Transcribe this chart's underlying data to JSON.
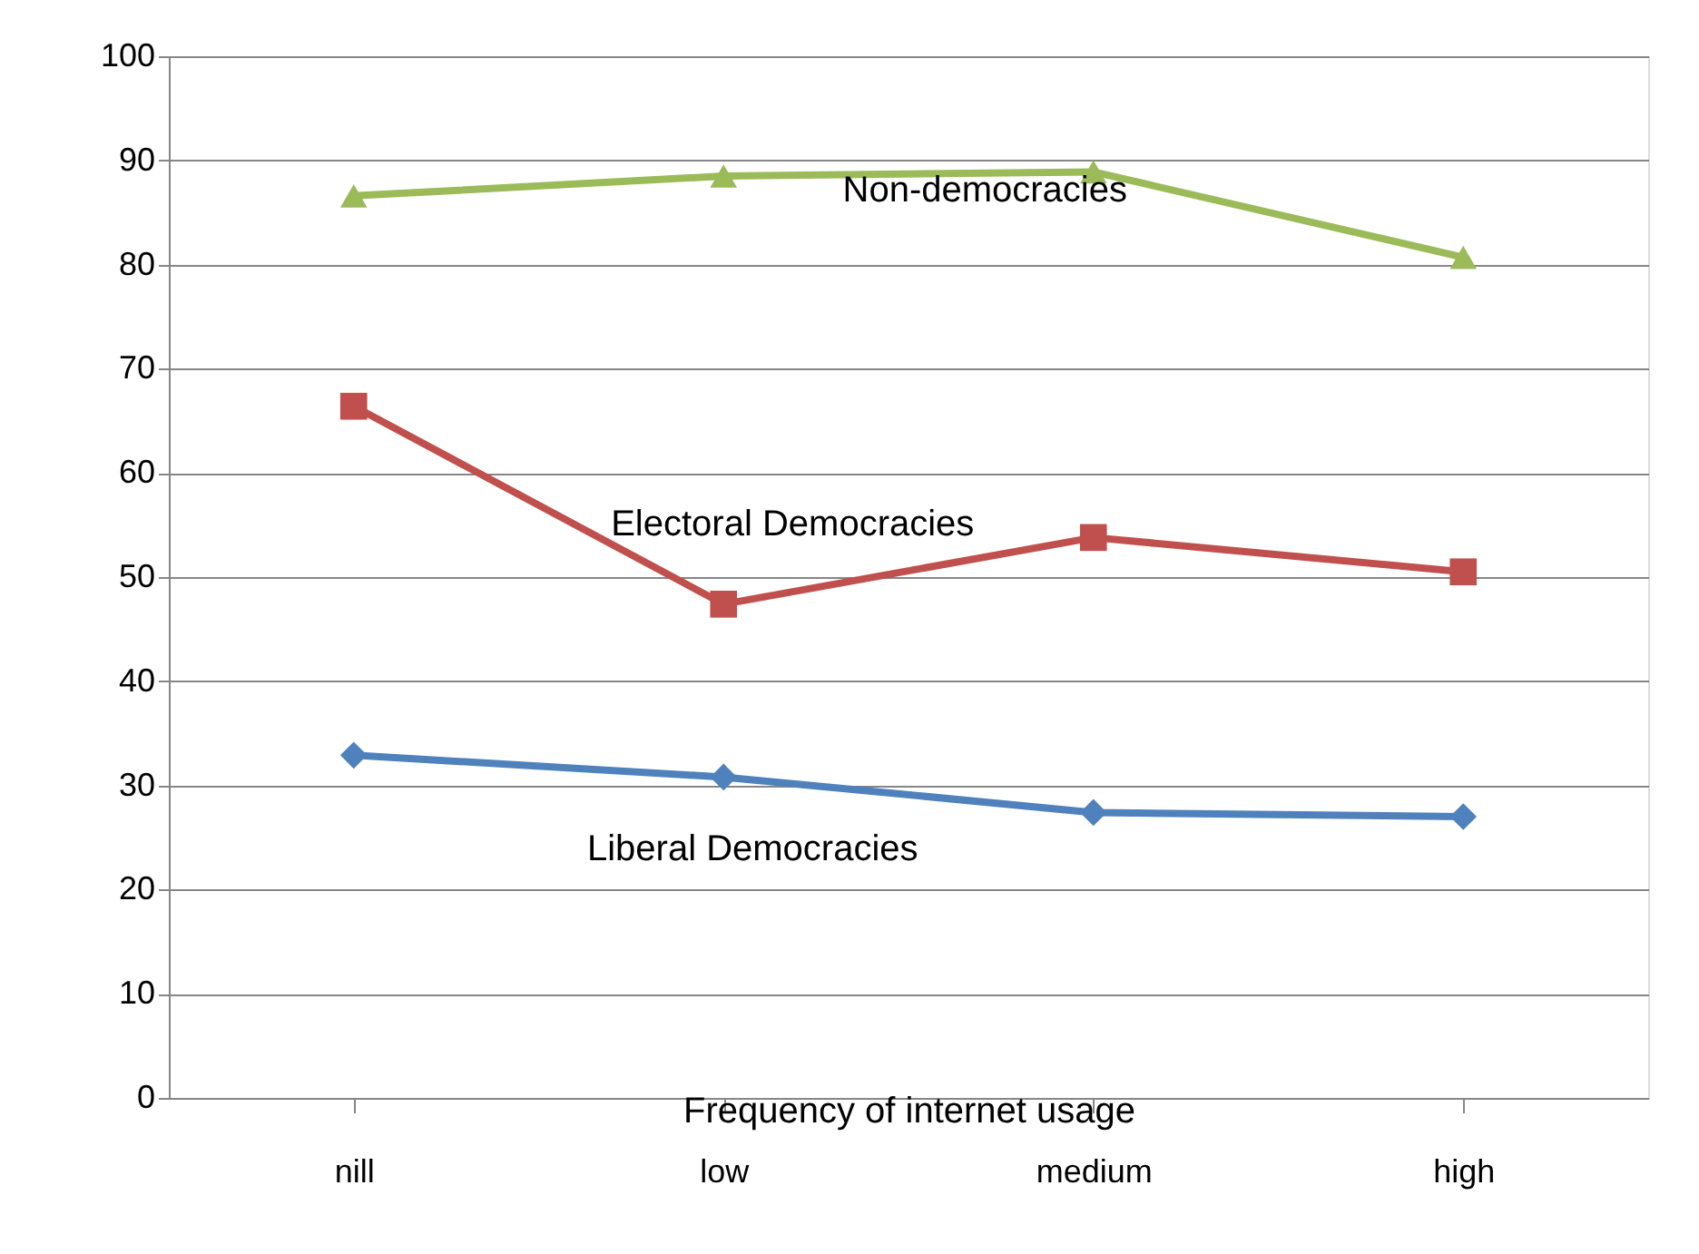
{
  "chart_data": {
    "type": "line",
    "xlabel": "Frequency of internet usage",
    "categories": [
      "nill",
      "low",
      "medium",
      "high"
    ],
    "series": [
      {
        "name": "Non-democracies",
        "color": "#9bbb59",
        "marker": "triangle",
        "values": [
          86.6,
          88.5,
          88.9,
          80.7
        ]
      },
      {
        "name": "Electoral Democracies",
        "color": "#c0504d",
        "marker": "square",
        "values": [
          66.4,
          47.4,
          53.8,
          50.5
        ]
      },
      {
        "name": "Liberal Democracies",
        "color": "#4f81bd",
        "marker": "diamond",
        "values": [
          32.9,
          30.8,
          27.4,
          27.0
        ]
      }
    ],
    "ylim": [
      0,
      100
    ],
    "yticks": [
      0,
      10,
      20,
      30,
      40,
      50,
      60,
      70,
      80,
      90,
      100
    ],
    "grid": "y"
  }
}
